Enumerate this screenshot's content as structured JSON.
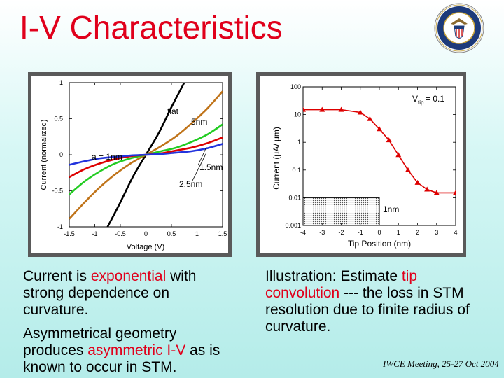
{
  "title": "I-V Characteristics",
  "left_text": {
    "p1": {
      "pre": "Current is ",
      "highlight": "exponential",
      "post": " with strong dependence on curvature."
    },
    "p2": {
      "pre": "Asymmetrical geometry produces ",
      "highlight": "asymmetric I-V",
      "post": " as is known to occur in STM."
    }
  },
  "right_text": {
    "pre": "Illustration:  Estimate ",
    "highlight1": "tip convolution",
    "post": " --- the loss in STM resolution due to finite radius of curvature."
  },
  "footer": "IWCE Meeting, 25-27 Oct 2004",
  "colors": {
    "title": "#e0001b",
    "highlight": "#e0001b",
    "panel_border": "#5a5a5a"
  },
  "chart_data": [
    {
      "type": "line",
      "xlabel": "Voltage (V)",
      "ylabel": "Current (normalized)",
      "xlim": [
        -1.5,
        1.5
      ],
      "ylim": [
        -1,
        1
      ],
      "x_ticks": [
        "-1.5",
        "-1",
        "-0.5",
        "0",
        "0.5",
        "1",
        "1.5"
      ],
      "y_ticks": [
        "1",
        "0.5",
        "0",
        "-0.5",
        "-1"
      ],
      "annotations": [
        "flat",
        "5nm",
        "a = 1nm",
        "1.5nm",
        "2.5nm"
      ],
      "series": [
        {
          "name": "flat",
          "color": "#000000",
          "x": [
            -0.75,
            -0.5,
            -0.25,
            0,
            0.25,
            0.5,
            0.75
          ],
          "y": [
            -1.0,
            -0.66,
            -0.3,
            0,
            0.3,
            0.66,
            1.0
          ]
        },
        {
          "name": "5nm",
          "color": "#c0741a",
          "x": [
            -1.5,
            -1.2,
            -0.9,
            -0.6,
            -0.3,
            0,
            0.3,
            0.6,
            0.9,
            1.2,
            1.5
          ],
          "y": [
            -0.89,
            -0.66,
            -0.45,
            -0.27,
            -0.12,
            0,
            0.12,
            0.26,
            0.44,
            0.64,
            0.88
          ]
        },
        {
          "name": "2.5nm",
          "color": "#22cc22",
          "x": [
            -1.5,
            -1.2,
            -0.9,
            -0.6,
            -0.3,
            0,
            0.3,
            0.6,
            0.9,
            1.2,
            1.5
          ],
          "y": [
            -0.55,
            -0.37,
            -0.23,
            -0.12,
            -0.05,
            0,
            0.05,
            0.1,
            0.18,
            0.28,
            0.42
          ]
        },
        {
          "name": "1.5nm",
          "color": "#dd0000",
          "x": [
            -1.5,
            -1.2,
            -0.9,
            -0.6,
            -0.3,
            0,
            0.3,
            0.6,
            0.9,
            1.2,
            1.5
          ],
          "y": [
            -0.31,
            -0.2,
            -0.12,
            -0.06,
            -0.02,
            0,
            0.02,
            0.06,
            0.1,
            0.16,
            0.24
          ]
        },
        {
          "name": "a = 1nm",
          "color": "#2233dd",
          "x": [
            -1.5,
            -1.2,
            -0.9,
            -0.6,
            -0.3,
            0,
            0.3,
            0.6,
            0.9,
            1.2,
            1.5
          ],
          "y": [
            -0.14,
            -0.09,
            -0.05,
            -0.03,
            -0.01,
            0,
            0.01,
            0.03,
            0.05,
            0.09,
            0.15
          ]
        }
      ]
    },
    {
      "type": "line",
      "xlabel": "Tip Position (nm)",
      "ylabel": "Current (μA/ μm)",
      "xlim": [
        -4,
        4
      ],
      "ylim_log": [
        0.001,
        100
      ],
      "x_ticks": [
        "-4",
        "-3",
        "-2",
        "-1",
        "0",
        "1",
        "2",
        "3",
        "4"
      ],
      "y_ticks": [
        "100",
        "10",
        "1",
        "0.1",
        "0.01",
        "0.001"
      ],
      "annotations": [
        "V",
        "tip",
        " = 0.1",
        "1nm"
      ],
      "step": {
        "x0": -4,
        "x_step": 0,
        "x1": 4,
        "y_low": 0.001,
        "y_high": 0.01
      },
      "series": [
        {
          "name": "Vtip = 0.1",
          "color": "#dd0000",
          "x": [
            -4,
            -3,
            -2,
            -1,
            -0.5,
            0,
            0.5,
            1,
            1.5,
            2,
            2.5,
            3,
            4
          ],
          "y": [
            15,
            15,
            15,
            12,
            7,
            3,
            1.2,
            0.35,
            0.1,
            0.035,
            0.02,
            0.015,
            0.015
          ]
        }
      ]
    }
  ]
}
